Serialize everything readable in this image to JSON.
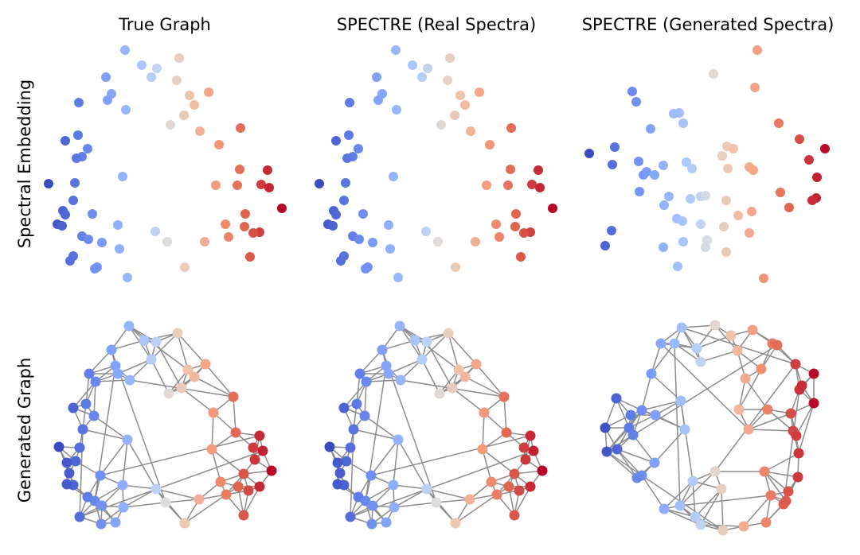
{
  "columns": {
    "true_graph": "True Graph",
    "spectre_real": "SPECTRE (Real Spectra)",
    "spectre_generated": "SPECTRE (Generated Spectra)"
  },
  "rows": {
    "spectral_embedding": "Spectral Embedding",
    "generated_graph": "Generated Graph"
  },
  "colormap": "coolwarm",
  "colors": {
    "cool_end": "#3b4cc0",
    "neutral_mid": "#dddddd",
    "warm_end": "#b40426",
    "edge_color": "#8c8c8c"
  }
}
